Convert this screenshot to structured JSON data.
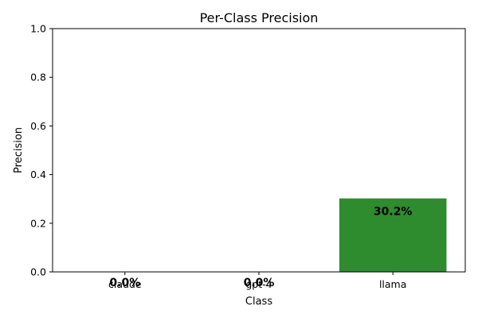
{
  "chart_data": {
    "type": "bar",
    "title": "Per-Class Precision",
    "xlabel": "Class",
    "ylabel": "Precision",
    "categories": [
      "claude",
      "gpt-4",
      "llama"
    ],
    "values": [
      0.0,
      0.0,
      0.302
    ],
    "data_labels": [
      "0.0%",
      "0.0%",
      "30.2%"
    ],
    "ylim": [
      0,
      1.0
    ],
    "yticks": [
      0.0,
      0.2,
      0.4,
      0.6,
      0.8,
      1.0
    ],
    "ytick_labels": [
      "0.0",
      "0.2",
      "0.4",
      "0.6",
      "0.8",
      "1.0"
    ],
    "grid": false,
    "bar_colors": [
      "#d62728",
      "#1f77b4",
      "#2e8b2e"
    ]
  }
}
